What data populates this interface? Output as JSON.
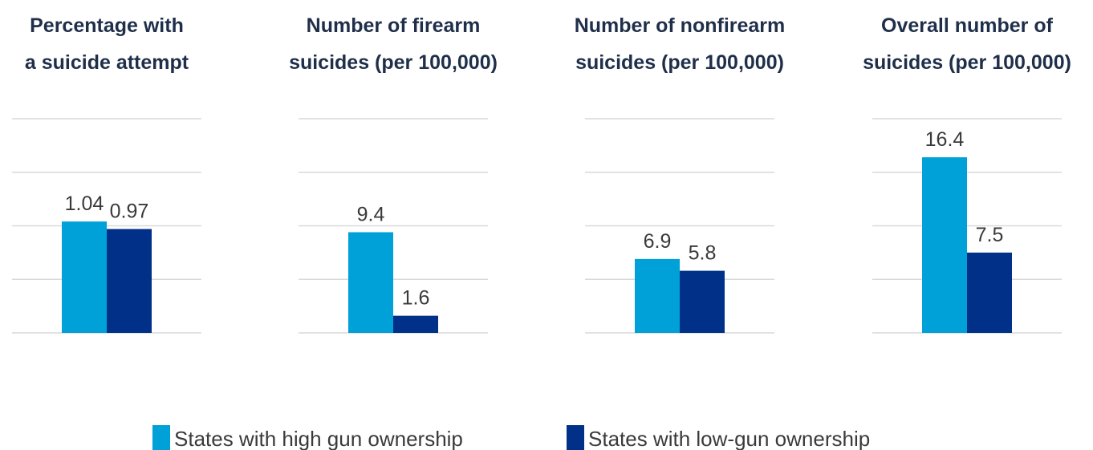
{
  "colors": {
    "high": "#00a0d8",
    "low": "#003087",
    "gridline": "#d9d9d9",
    "title": "#1f2f4a",
    "label": "#3a3a3a"
  },
  "legend": {
    "placement": "bottom-center",
    "items": [
      {
        "label": "States with high gun ownership",
        "color": "#00a0d8"
      },
      {
        "label": "States with low-gun ownership",
        "color": "#003087"
      }
    ]
  },
  "chart_data": [
    {
      "type": "bar",
      "title_lines": [
        "Percentage with",
        "a suicide attempt"
      ],
      "categories": [
        "States with high gun ownership",
        "States with low-gun ownership"
      ],
      "values": [
        1.04,
        0.97
      ],
      "value_labels": [
        "1.04",
        "0.97"
      ],
      "ylim": [
        0,
        2
      ],
      "gridlines": 4,
      "grid": true
    },
    {
      "type": "bar",
      "title_lines": [
        "Number of firearm",
        "suicides (per 100,000)"
      ],
      "categories": [
        "States with high gun ownership",
        "States with low-gun ownership"
      ],
      "values": [
        9.4,
        1.6
      ],
      "value_labels": [
        "9.4",
        "1.6"
      ],
      "ylim": [
        0,
        20
      ],
      "gridlines": 4,
      "grid": true
    },
    {
      "type": "bar",
      "title_lines": [
        "Number of nonfirearm",
        "suicides (per 100,000)"
      ],
      "categories": [
        "States with high gun ownership",
        "States with low-gun ownership"
      ],
      "values": [
        6.9,
        5.8
      ],
      "value_labels": [
        "6.9",
        "5.8"
      ],
      "ylim": [
        0,
        20
      ],
      "gridlines": 4,
      "grid": true
    },
    {
      "type": "bar",
      "title_lines": [
        "Overall number of",
        "suicides (per 100,000)"
      ],
      "categories": [
        "States with high gun ownership",
        "States with low-gun ownership"
      ],
      "values": [
        16.4,
        7.5
      ],
      "value_labels": [
        "16.4",
        "7.5"
      ],
      "ylim": [
        0,
        20
      ],
      "gridlines": 4,
      "grid": true
    }
  ]
}
